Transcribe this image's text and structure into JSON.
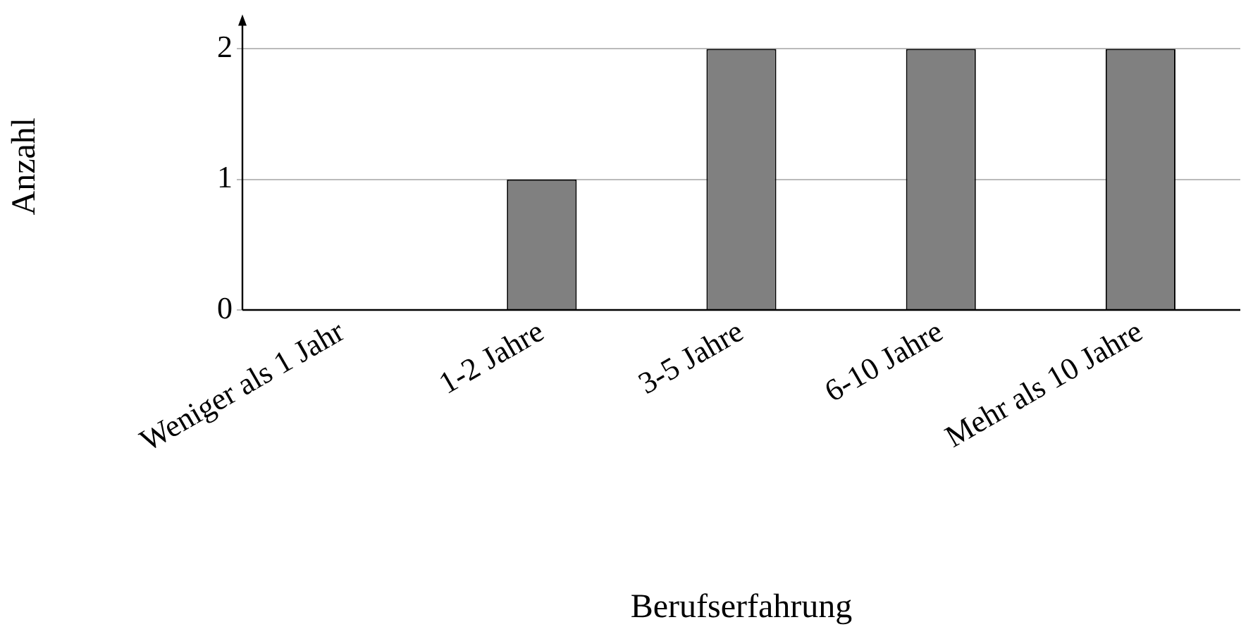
{
  "chart_data": {
    "type": "bar",
    "xlabel": "Berufserfahrung",
    "ylabel": "Anzahl",
    "categories": [
      "Weniger als 1 Jahr",
      "1-2 Jahre",
      "3-5 Jahre",
      "6-10 Jahre",
      "Mehr als 10 Jahre"
    ],
    "values": [
      0,
      1,
      2,
      2,
      2
    ],
    "color": "#808080",
    "ylim": [
      0,
      2.2
    ],
    "yticks": [
      0,
      1,
      2
    ],
    "grid": "y"
  }
}
